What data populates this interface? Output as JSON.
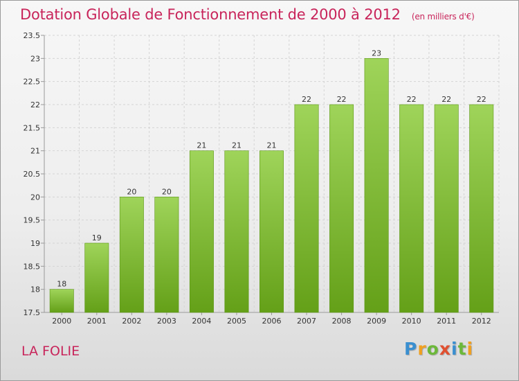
{
  "chart_data": {
    "type": "bar",
    "title": "Dotation Globale de Fonctionnement de 2000 à 2012",
    "subtitle": "(en milliers d'€)",
    "categories": [
      "2000",
      "2001",
      "2002",
      "2003",
      "2004",
      "2005",
      "2006",
      "2007",
      "2008",
      "2009",
      "2010",
      "2011",
      "2012"
    ],
    "values": [
      18,
      19,
      20,
      20,
      21,
      21,
      21,
      22,
      22,
      23,
      22,
      22,
      22
    ],
    "data_labels": [
      "18",
      "19",
      "20",
      "20",
      "21",
      "21",
      "21",
      "22",
      "22",
      "23",
      "22",
      "22",
      "22"
    ],
    "ylim": [
      17.5,
      23.5
    ],
    "yticks": [
      17.5,
      18,
      18.5,
      19,
      19.5,
      20,
      20.5,
      21,
      21.5,
      22,
      22.5,
      23,
      23.5
    ],
    "ytick_labels": [
      "17.5",
      "18",
      "18.5",
      "19",
      "19.5",
      "20",
      "20.5",
      "21",
      "21.5",
      "22",
      "22.5",
      "23",
      "23.5"
    ],
    "grid": true,
    "bar_color_top": "#9fd45a",
    "bar_color_bottom": "#64a018"
  },
  "place_name": "LA FOLIE",
  "logo": {
    "letters": [
      "P",
      "r",
      "o",
      "x",
      "i",
      "t",
      "i"
    ],
    "colors": [
      "#3a8fd0",
      "#f0a020",
      "#6cb83a",
      "#e05030",
      "#3a8fd0",
      "#6cb83a",
      "#f0a020"
    ]
  }
}
